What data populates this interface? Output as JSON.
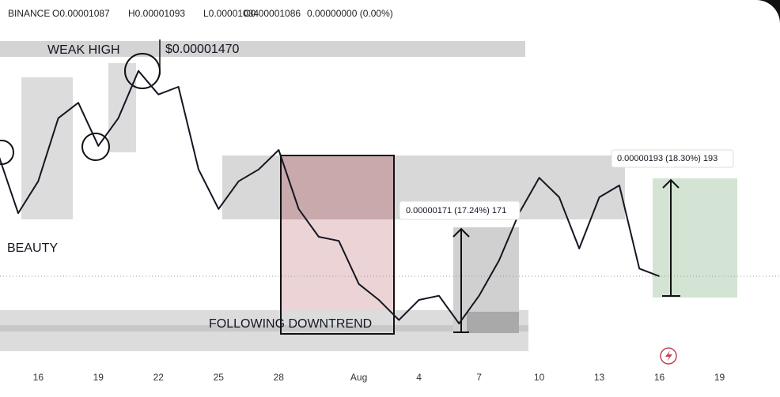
{
  "chart_data": {
    "type": "line",
    "header": {
      "symbol": "BINANCE",
      "ohlc": [
        {
          "value": 1.087e-05,
          "label": "O0.00001087"
        },
        {
          "value": 1.093e-05,
          "label": "H0.00001093"
        },
        {
          "value": 1.084e-05,
          "label": "L0.00001084"
        },
        {
          "value": 1.086e-05,
          "label": "C0.00001086"
        }
      ],
      "change": "0.00000000 (0.00%)"
    },
    "annotations": [
      "WEAK HIGH",
      "$0.00001470",
      "BEAUTY",
      "FOLLOWING DOWNTREND",
      "0.00000171 (17.24%) 171",
      "0.00000193 (18.30%) 193"
    ],
    "categories": [
      null,
      null,
      "16",
      null,
      null,
      "19",
      null,
      null,
      "22",
      null,
      null,
      "25",
      null,
      null,
      "28",
      null,
      null,
      null,
      "Aug",
      null,
      null,
      "4",
      null,
      null,
      "7",
      null,
      null,
      "10",
      null,
      null,
      "13",
      null,
      null,
      "16",
      null,
      null,
      "19",
      null,
      null
    ],
    "series": [
      {
        "name": "Close",
        "color": "#131722",
        "values": [
          1.293e-05,
          1.193e-05,
          1.247e-05,
          1.354e-05,
          1.38e-05,
          1.307e-05,
          1.354e-05,
          1.434e-05,
          1.394e-05,
          1.407e-05,
          1.267e-05,
          1.2e-05,
          1.247e-05,
          1.267e-05,
          1.3e-05,
          1.2e-05,
          1.153e-05,
          1.146e-05,
          1.073e-05,
          1.046e-05,
          1.012e-05,
          1.046e-05,
          1.053e-05,
          1.006e-05,
          1.053e-05,
          1.113e-05,
          1.193e-05,
          1.253e-05,
          1.22e-05,
          1.133e-05,
          1.22e-05,
          1.24e-05,
          1.099e-05,
          1.086e-05,
          null,
          null,
          null,
          null,
          null
        ]
      }
    ],
    "ylim": [
      9.39e-06,
      1.514e-05
    ]
  }
}
